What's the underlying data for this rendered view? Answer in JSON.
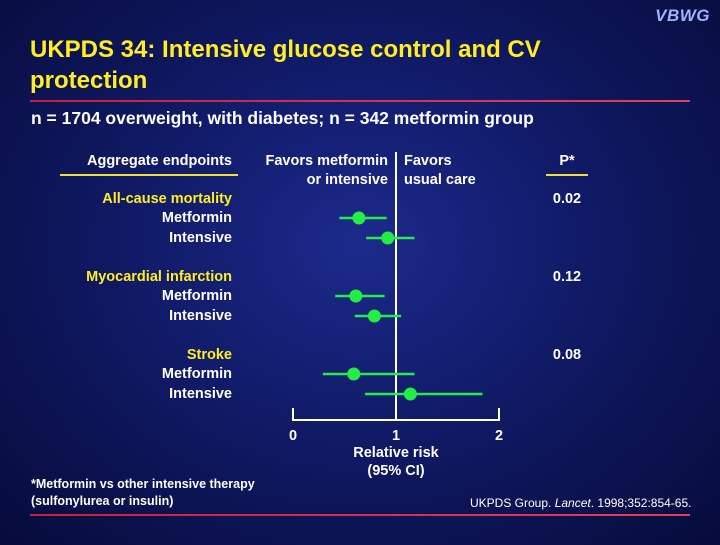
{
  "logo": "VBWG",
  "title": "UKPDS 34: Intensive glucose control and CV protection",
  "subtitle": "n = 1704 overweight, with diabetes; n = 342 metformin group",
  "headers": {
    "endpoints": "Aggregate endpoints",
    "favors_left_1": "Favors metformin",
    "favors_left_2": "or intensive",
    "favors_right_1": "Favors",
    "favors_right_2": "usual care",
    "p": "P*"
  },
  "footnote": {
    "line1": "*Metformin vs other intensive therapy",
    "line2": "(sulfonylurea or insulin)"
  },
  "citation": {
    "prefix": "UKPDS Group. ",
    "journal": "Lancet",
    "suffix": ". 1998;352:854-65."
  },
  "colors": {
    "title": "#ffee22",
    "marker": "#22ee44",
    "rule": "#d02a48"
  },
  "chart_data": {
    "type": "forest",
    "xlabel": "Relative risk (95% CI)",
    "xlabel_line1": "Relative risk",
    "xlabel_line2": "(95% CI)",
    "xlim": [
      0,
      2
    ],
    "xticks": [
      "0",
      "1",
      "2"
    ],
    "reference_line": 1,
    "groups": [
      {
        "endpoint": "All-cause mortality",
        "p": "0.02",
        "rows": [
          {
            "label": "Metformin",
            "rr": 0.64,
            "ci": [
              0.45,
              0.91
            ]
          },
          {
            "label": "Intensive",
            "rr": 0.92,
            "ci": [
              0.71,
              1.18
            ]
          }
        ]
      },
      {
        "endpoint": "Myocardial infarction",
        "p": "0.12",
        "rows": [
          {
            "label": "Metformin",
            "rr": 0.61,
            "ci": [
              0.41,
              0.89
            ]
          },
          {
            "label": "Intensive",
            "rr": 0.79,
            "ci": [
              0.6,
              1.05
            ]
          }
        ]
      },
      {
        "endpoint": "Stroke",
        "p": "0.08",
        "rows": [
          {
            "label": "Metformin",
            "rr": 0.59,
            "ci": [
              0.29,
              1.18
            ]
          },
          {
            "label": "Intensive",
            "rr": 1.14,
            "ci": [
              0.7,
              1.84
            ]
          }
        ]
      }
    ]
  }
}
